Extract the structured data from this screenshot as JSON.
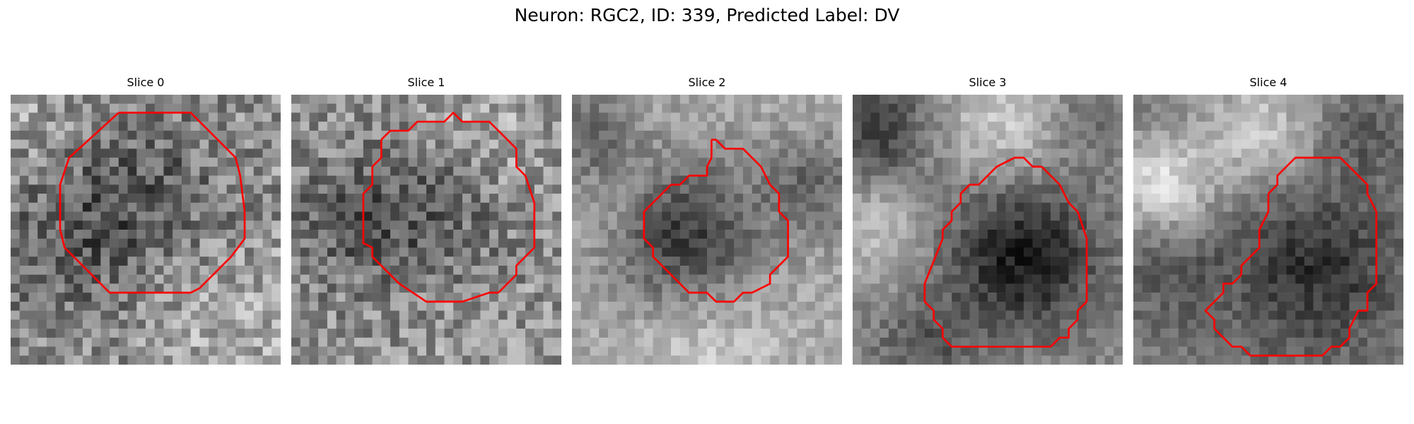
{
  "figure": {
    "title": "Neuron: RGC2, ID: 339, Predicted Label: DV"
  },
  "panels": [
    {
      "title": "Slice 0"
    },
    {
      "title": "Slice 1"
    },
    {
      "title": "Slice 2"
    },
    {
      "title": "Slice 3"
    },
    {
      "title": "Slice 4"
    }
  ],
  "colors": {
    "contour": "#ff0000",
    "colormap": "grayscale"
  }
}
